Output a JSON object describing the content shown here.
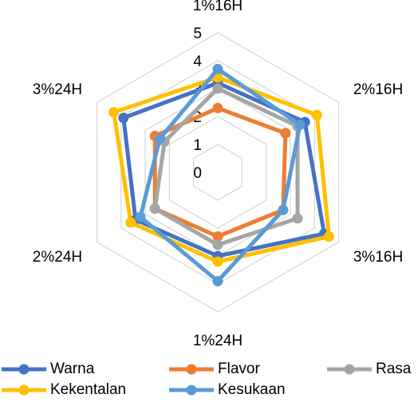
{
  "chart_data": {
    "type": "radar",
    "categories": [
      "1%16H",
      "2%16H",
      "3%16H",
      "1%24H",
      "2%24H",
      "3%24H"
    ],
    "rlim": [
      0,
      5
    ],
    "ticks": [
      "0",
      "1",
      "2",
      "3",
      "4",
      "5"
    ],
    "grid": true,
    "legend_position": "bottom",
    "series": [
      {
        "name": "Warna",
        "color": "#4472C4",
        "values": [
          3.2,
          3.6,
          4.4,
          3.0,
          3.4,
          3.9
        ]
      },
      {
        "name": "Flavor",
        "color": "#ED7D31",
        "values": [
          2.3,
          2.8,
          2.7,
          2.3,
          2.6,
          2.6
        ]
      },
      {
        "name": "Rasa",
        "color": "#A5A5A5",
        "values": [
          3.0,
          3.3,
          3.3,
          2.6,
          2.6,
          2.2
        ]
      },
      {
        "name": "Kekentalan",
        "color": "#FFC000",
        "values": [
          3.4,
          4.1,
          4.6,
          3.2,
          3.6,
          4.3
        ]
      },
      {
        "name": "Kesukaan",
        "color": "#5B9BD5",
        "values": [
          3.7,
          3.4,
          2.7,
          3.9,
          3.2,
          2.4
        ]
      }
    ]
  }
}
